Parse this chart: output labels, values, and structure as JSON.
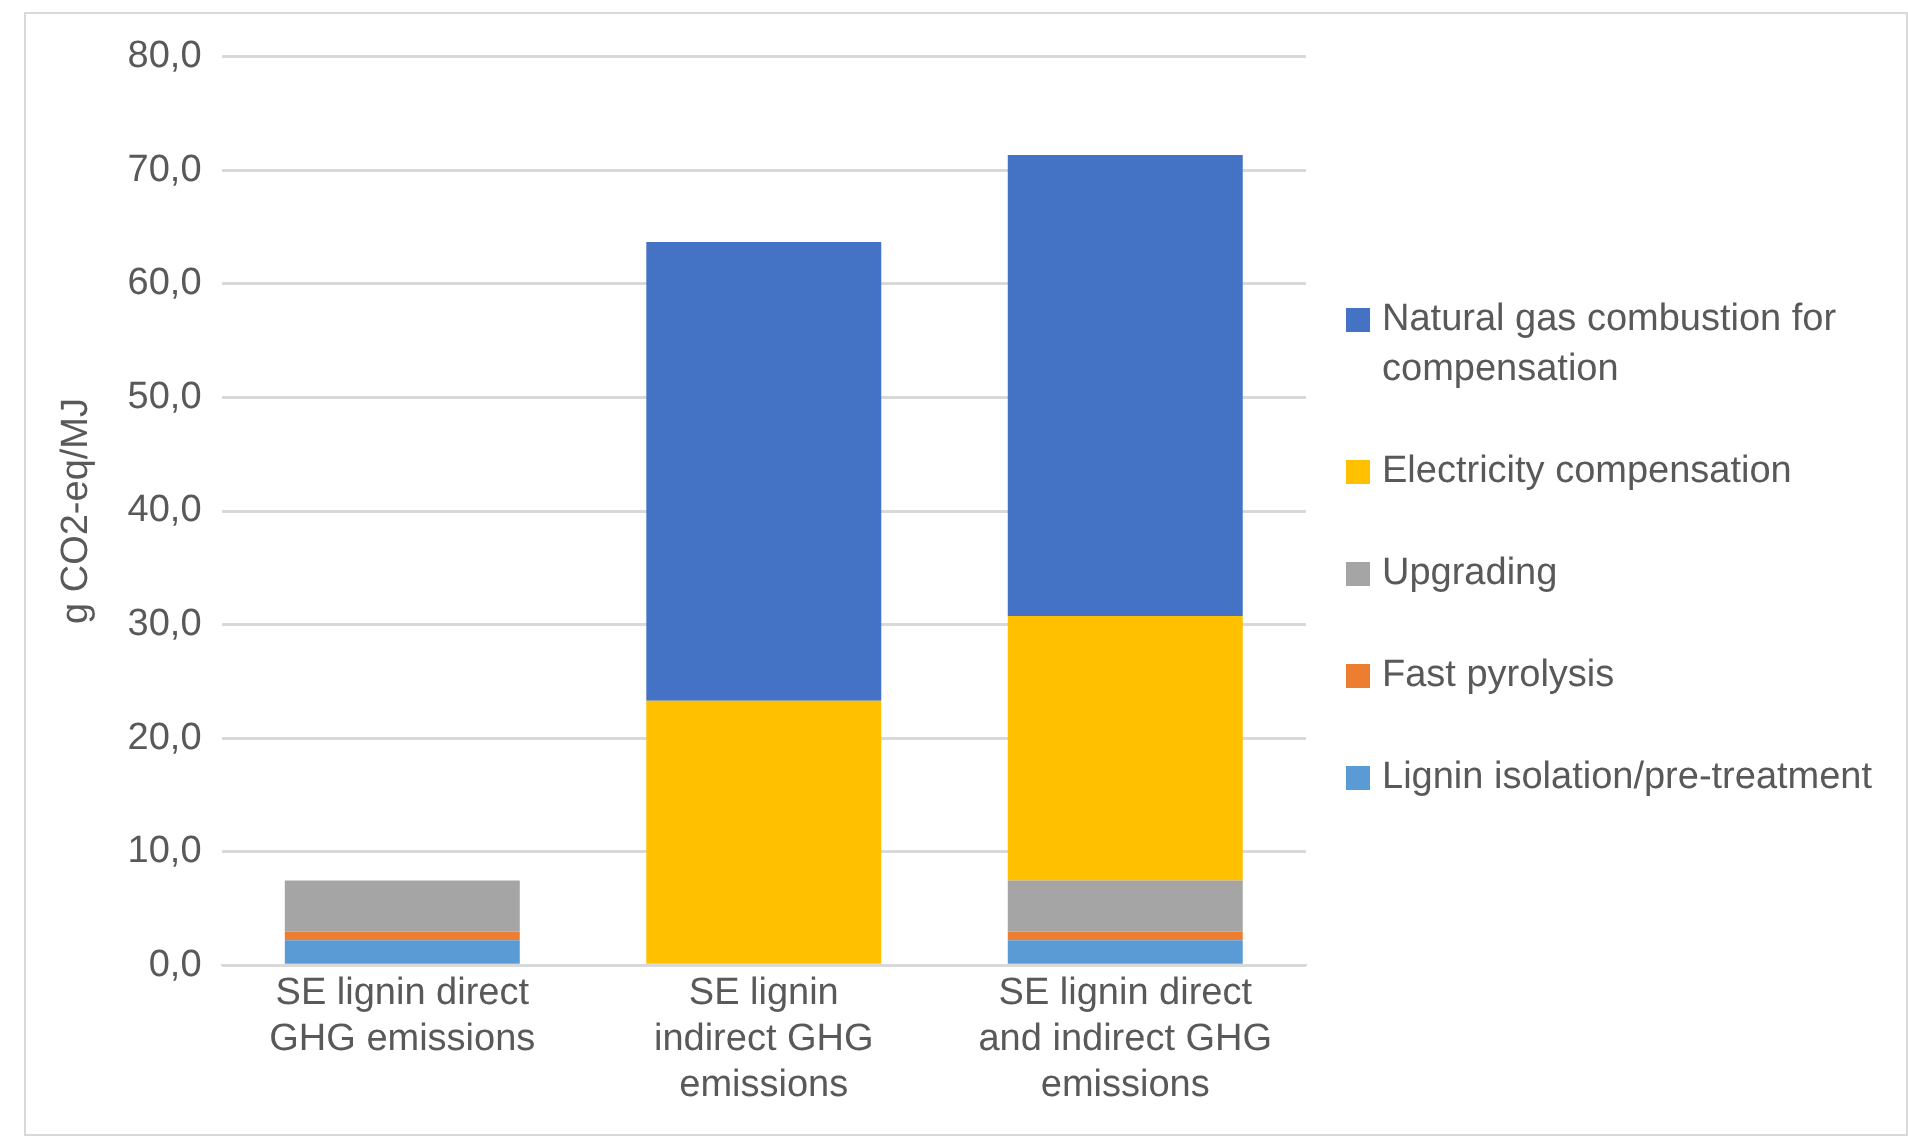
{
  "chart_data": {
    "type": "bar",
    "stacked": true,
    "ylabel": "g CO2-eq/MJ",
    "categories": [
      "SE lignin direct GHG emissions",
      "SE lignin indirect GHG emissions",
      "SE lignin direct and indirect GHG emissions"
    ],
    "series": [
      {
        "name": "Lignin isolation/pre-treatment",
        "color": "#5b9bd5",
        "values": [
          2.2,
          null,
          2.2
        ]
      },
      {
        "name": "Fast pyrolysis",
        "color": "#ed7d31",
        "values": [
          0.75,
          null,
          0.75
        ]
      },
      {
        "name": "Upgrading",
        "color": "#a5a5a5",
        "values": [
          4.5,
          null,
          4.5
        ]
      },
      {
        "name": "Electricity compensation",
        "color": "#ffc000",
        "values": [
          null,
          23.3,
          23.3
        ]
      },
      {
        "name": "Natural gas combustion for compensation",
        "color": "#4472c4",
        "values": [
          null,
          40.4,
          40.6
        ]
      }
    ],
    "ylim": [
      0,
      80
    ],
    "yticks": [
      {
        "value": 0,
        "label": "0,0"
      },
      {
        "value": 10,
        "label": "10,0"
      },
      {
        "value": 20,
        "label": "20,0"
      },
      {
        "value": 30,
        "label": "30,0"
      },
      {
        "value": 40,
        "label": "40,0"
      },
      {
        "value": 50,
        "label": "50,0"
      },
      {
        "value": 60,
        "label": "60,0"
      },
      {
        "value": 70,
        "label": "70,0"
      },
      {
        "value": 80,
        "label": "80,0"
      }
    ],
    "grid": "y",
    "legend": "right"
  }
}
